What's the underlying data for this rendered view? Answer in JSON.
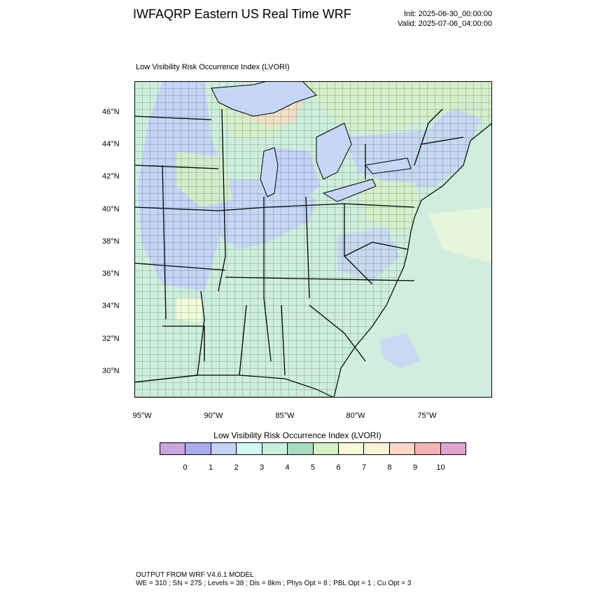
{
  "header": {
    "title": "IWFAQRP Eastern US Real Time WRF",
    "init": "Init: 2025-06-30_00:00:00",
    "valid": "Valid: 2025-07-06_04:00:00"
  },
  "panel": {
    "title": "Low Visibility Risk Occurrence Index   (LVORI)"
  },
  "axes": {
    "lat_labels": [
      "46°N",
      "44°N",
      "42°N",
      "40°N",
      "38°N",
      "36°N",
      "34°N",
      "32°N",
      "30°N"
    ],
    "lon_labels": [
      "95°W",
      "90°W",
      "85°W",
      "80°W",
      "75°W"
    ]
  },
  "colorbar": {
    "title": "Low Visibility Risk Occurrence Index  (LVORI)",
    "colors": [
      "#c8a5dc",
      "#aaaaee",
      "#c3d2f8",
      "#d2fbf5",
      "#c8f0df",
      "#a8dcc0",
      "#d4f0c6",
      "#f5fcd8",
      "#fdf2d6",
      "#fcd8c6",
      "#f4b4b4",
      "#dfa5cf"
    ],
    "labels": [
      "0",
      "1",
      "2",
      "3",
      "4",
      "5",
      "6",
      "7",
      "8",
      "9",
      "10"
    ]
  },
  "map": {
    "colors": {
      "land_base": "#cdeedd",
      "water": "#c6d6f6",
      "ocean": "#cfeedf",
      "green": "#d4f0c6",
      "yellow": "#f5fcd8",
      "red": "#f4b4b4"
    }
  },
  "footer": {
    "line1": "OUTPUT FROM WRF V4.6.1 MODEL",
    "line2": "WE = 310 ; SN = 275 ; Levels = 38 ; Dis = 8km ; Phys Opt = 8 ; PBL Opt = 1 ; Cu Opt = 3"
  }
}
